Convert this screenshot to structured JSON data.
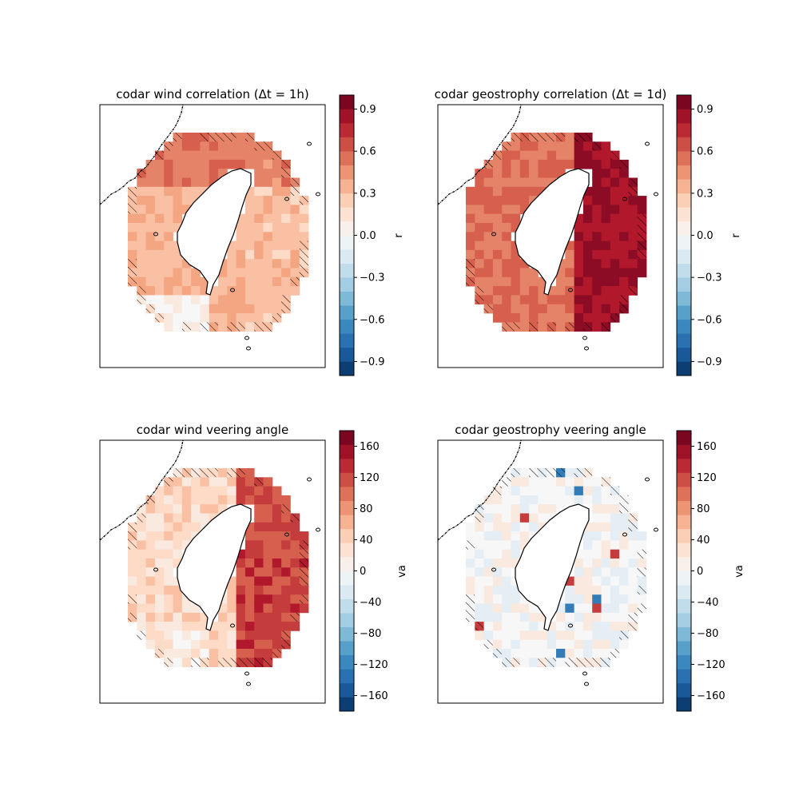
{
  "figure": {
    "panels": [
      {
        "id": "wind_corr",
        "title": "codar wind correlation (Δt = 1h)",
        "cbar_label": "r",
        "cbar_ticks": [
          "0.9",
          "0.6",
          "0.3",
          "0.0",
          "−0.3",
          "−0.6",
          "−0.9"
        ]
      },
      {
        "id": "geo_corr",
        "title": "codar geostrophy correlation (Δt = 1d)",
        "cbar_label": "r",
        "cbar_ticks": [
          "0.9",
          "0.6",
          "0.3",
          "0.0",
          "−0.3",
          "−0.6",
          "−0.9"
        ]
      },
      {
        "id": "wind_va",
        "title": "codar wind veering angle",
        "cbar_label": "va",
        "cbar_ticks": [
          "160",
          "120",
          "80",
          "40",
          "0",
          "−40",
          "−80",
          "−120",
          "−160"
        ]
      },
      {
        "id": "geo_va",
        "title": "codar geostrophy veering angle",
        "cbar_label": "va",
        "cbar_ticks": [
          "160",
          "120",
          "80",
          "40",
          "0",
          "−40",
          "−80",
          "−120",
          "−160"
        ]
      }
    ]
  },
  "chart_data": [
    {
      "type": "heatmap",
      "title": "codar wind correlation (Δt = 1h)",
      "colorbar_label": "r",
      "vlim": [
        -1,
        1
      ],
      "colormap": "RdBu_r",
      "colorbar_ticks": [
        -0.9,
        -0.6,
        -0.3,
        0.0,
        0.3,
        0.6,
        0.9
      ],
      "hatching": "diagonal hatching over coastal/edge cells",
      "grid": false,
      "field_summary": "mostly weak positive correlation 0.1–0.5 around Taiwan, higher (~0.5) on northwest and north edges, near 0 in southwest"
    },
    {
      "type": "heatmap",
      "title": "codar geostrophy correlation (Δt = 1d)",
      "colorbar_label": "r",
      "vlim": [
        -1,
        1
      ],
      "colormap": "RdBu_r",
      "colorbar_ticks": [
        -0.9,
        -0.6,
        -0.3,
        0.0,
        0.3,
        0.6,
        0.9
      ],
      "hatching": "diagonal hatching over coastal/edge cells",
      "grid": false,
      "field_summary": "strong positive correlation 0.7–0.95 east of Taiwan, 0.4–0.7 west and south"
    },
    {
      "type": "heatmap",
      "title": "codar wind veering angle",
      "colorbar_label": "va",
      "vlim": [
        -180,
        180
      ],
      "colormap": "RdBu_r",
      "colorbar_ticks": [
        -160,
        -120,
        -80,
        -40,
        0,
        40,
        80,
        120,
        160
      ],
      "hatching": "diagonal hatching over coastal/edge cells",
      "grid": false,
      "field_summary": "positive 20–60 west of Taiwan, 100–150 east of Taiwan, isolated negative cells near southern tip"
    },
    {
      "type": "heatmap",
      "title": "codar geostrophy veering angle",
      "colorbar_label": "va",
      "vlim": [
        -180,
        180
      ],
      "colormap": "RdBu_r",
      "colorbar_ticks": [
        -160,
        -120,
        -80,
        -40,
        0,
        40,
        80,
        120,
        160
      ],
      "hatching": "diagonal hatching over coastal/edge cells",
      "grid": false,
      "field_summary": "near zero (−20 to 20) almost everywhere, a few isolated ±100–160 cells"
    }
  ]
}
